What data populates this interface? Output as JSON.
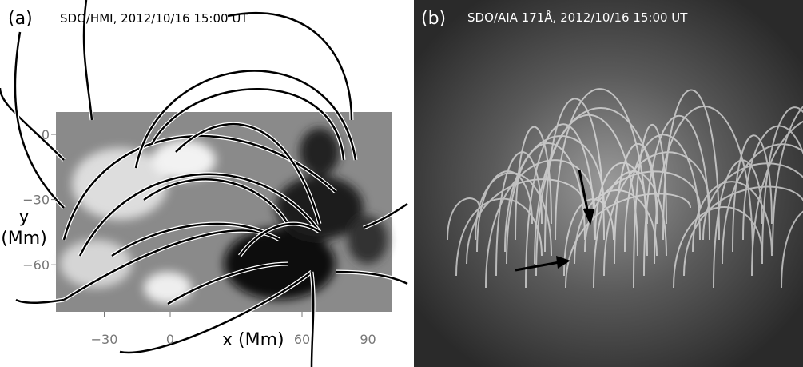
{
  "panel_a": {
    "label": "(a)",
    "title": "SDO/HMI, 2012/10/16 15:00 UT",
    "x_axis_label": "x (Mm)",
    "y_axis_label": [
      "y",
      "(Mm)"
    ],
    "xticks": [
      {
        "value": -30,
        "label": "−30"
      },
      0,
      60,
      90
    ],
    "yticks": [
      0,
      {
        "value": -30,
        "label": "−30"
      },
      {
        "value": -60,
        "label": "−60"
      }
    ]
  },
  "panel_b": {
    "label": "(b)",
    "title": "SDO/AIA 171Å, 2012/10/16 15:00 UT"
  }
}
